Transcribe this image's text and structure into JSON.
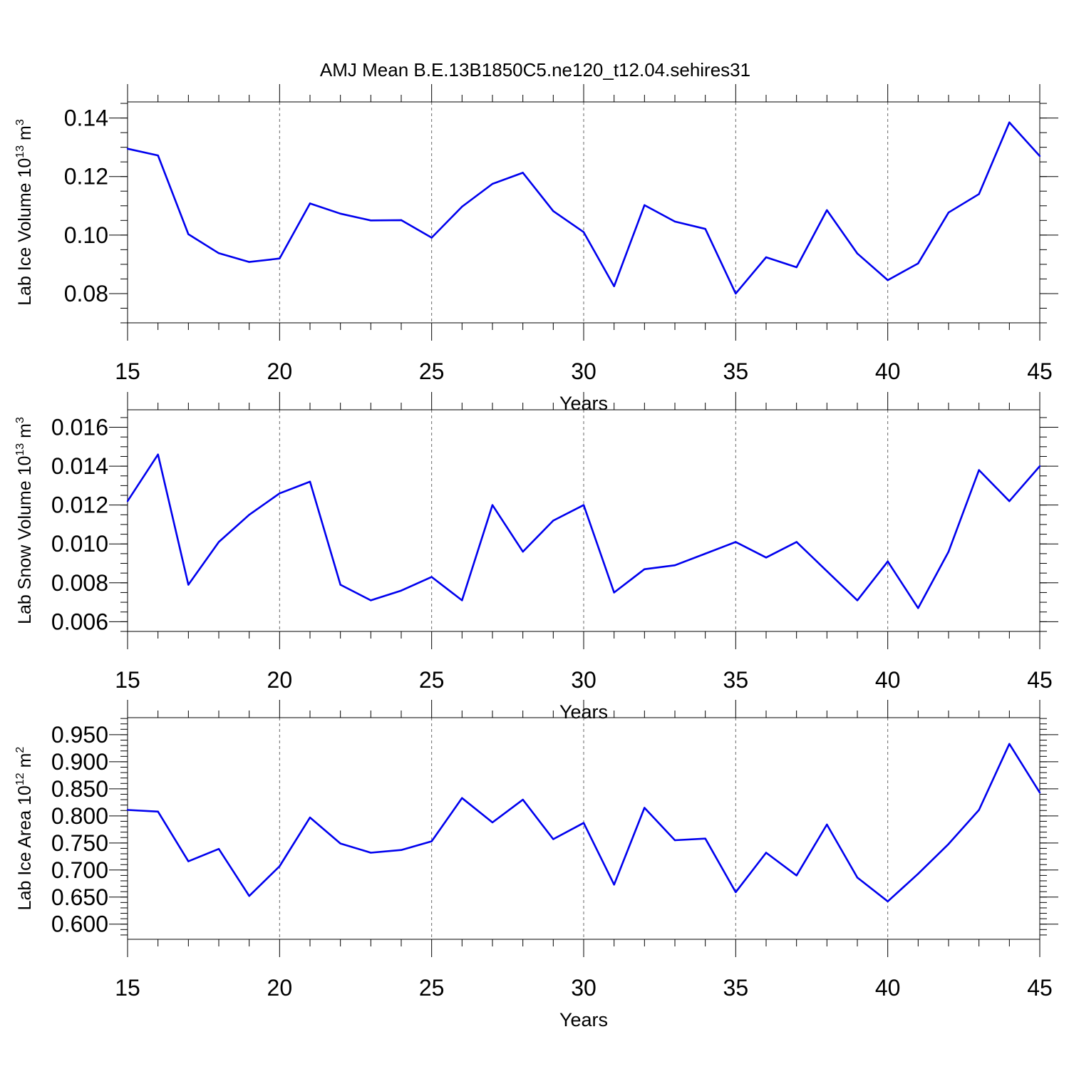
{
  "figure_title": "AMJ Mean B.E.13B1850C5.ne120_t12.04.sehires31",
  "line_color": "#0000ee",
  "chart_data": [
    {
      "type": "line",
      "title": "AMJ Mean B.E.13B1850C5.ne120_t12.04.sehires31",
      "xlabel": "Years",
      "ylabel": "Lab Ice Volume 10",
      "ylabel_exp": "13",
      "ylabel_unit": " m",
      "ylabel_unit_exp": "3",
      "xlim": [
        15,
        45
      ],
      "ylim": [
        0.07,
        0.1455
      ],
      "xticks": [
        15,
        20,
        25,
        30,
        35,
        40,
        45
      ],
      "xtick_labels": [
        "15",
        "20",
        "25",
        "30",
        "35",
        "40",
        "45"
      ],
      "yticks": [
        0.08,
        0.1,
        0.12,
        0.14
      ],
      "ytick_labels": [
        "0.08",
        "0.10",
        "0.12",
        "0.14"
      ],
      "minor_step": 0.005,
      "grid": "vertical dashed at major x ticks",
      "x": [
        15,
        16,
        17,
        18,
        19,
        20,
        21,
        22,
        23,
        24,
        25,
        26,
        27,
        28,
        29,
        30,
        31,
        32,
        33,
        34,
        35,
        36,
        37,
        38,
        39,
        40,
        41,
        42,
        43,
        44,
        45
      ],
      "values": [
        0.1295,
        0.1272,
        0.1003,
        0.0938,
        0.0908,
        0.092,
        0.1108,
        0.1073,
        0.105,
        0.1051,
        0.0991,
        0.1097,
        0.1175,
        0.1213,
        0.1082,
        0.101,
        0.0825,
        0.1102,
        0.1046,
        0.1021,
        0.08,
        0.0924,
        0.089,
        0.1085,
        0.0937,
        0.0846,
        0.0903,
        0.1077,
        0.114,
        0.1385,
        0.127
      ]
    },
    {
      "type": "line",
      "xlabel": "Years",
      "ylabel": "Lab Snow Volume 10",
      "ylabel_exp": "13",
      "ylabel_unit": " m",
      "ylabel_unit_exp": "3",
      "xlim": [
        15,
        45
      ],
      "ylim": [
        0.0055,
        0.0169
      ],
      "xticks": [
        15,
        20,
        25,
        30,
        35,
        40,
        45
      ],
      "xtick_labels": [
        "15",
        "20",
        "25",
        "30",
        "35",
        "40",
        "45"
      ],
      "yticks": [
        0.006,
        0.008,
        0.01,
        0.012,
        0.014,
        0.016
      ],
      "ytick_labels": [
        "0.006",
        "0.008",
        "0.010",
        "0.012",
        "0.014",
        "0.016"
      ],
      "minor_step": 0.0005,
      "grid": "vertical dashed at major x ticks",
      "x": [
        15,
        16,
        17,
        18,
        19,
        20,
        21,
        22,
        23,
        24,
        25,
        26,
        27,
        28,
        29,
        30,
        31,
        32,
        33,
        34,
        35,
        36,
        37,
        38,
        39,
        40,
        41,
        42,
        43,
        44,
        45
      ],
      "values": [
        0.0122,
        0.0146,
        0.0079,
        0.0101,
        0.0115,
        0.0126,
        0.0132,
        0.0079,
        0.0071,
        0.0076,
        0.0083,
        0.0071,
        0.012,
        0.0096,
        0.0112,
        0.012,
        0.0075,
        0.0087,
        0.0089,
        0.0095,
        0.0101,
        0.0093,
        0.0101,
        0.0086,
        0.0071,
        0.0091,
        0.0067,
        0.0096,
        0.0138,
        0.0122,
        0.014
      ]
    },
    {
      "type": "line",
      "xlabel": "Years",
      "ylabel": "Lab Ice Area 10",
      "ylabel_exp": "12",
      "ylabel_unit": " m",
      "ylabel_unit_exp": "2",
      "xlim": [
        15,
        45
      ],
      "ylim": [
        0.572,
        0.9815
      ],
      "xticks": [
        15,
        20,
        25,
        30,
        35,
        40,
        45
      ],
      "xtick_labels": [
        "15",
        "20",
        "25",
        "30",
        "35",
        "40",
        "45"
      ],
      "yticks": [
        0.6,
        0.65,
        0.7,
        0.75,
        0.8,
        0.85,
        0.9,
        0.95
      ],
      "ytick_labels": [
        "0.600",
        "0.650",
        "0.700",
        "0.750",
        "0.800",
        "0.850",
        "0.900",
        "0.950"
      ],
      "minor_step": 0.01,
      "grid": "vertical dashed at major x ticks",
      "x": [
        15,
        16,
        17,
        18,
        19,
        20,
        21,
        22,
        23,
        24,
        25,
        26,
        27,
        28,
        29,
        30,
        31,
        32,
        33,
        34,
        35,
        36,
        37,
        38,
        39,
        40,
        41,
        42,
        43,
        44,
        45
      ],
      "values": [
        0.811,
        0.808,
        0.716,
        0.739,
        0.652,
        0.707,
        0.797,
        0.749,
        0.732,
        0.737,
        0.753,
        0.833,
        0.788,
        0.83,
        0.757,
        0.787,
        0.673,
        0.815,
        0.755,
        0.758,
        0.659,
        0.732,
        0.69,
        0.784,
        0.686,
        0.642,
        0.693,
        0.748,
        0.811,
        0.933,
        0.843
      ]
    }
  ]
}
